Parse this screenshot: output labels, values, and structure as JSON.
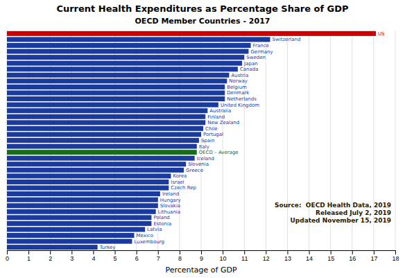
{
  "chart_data": {
    "type": "bar",
    "orientation": "horizontal",
    "title": "Current Health Expenditures as Percentage Share of GDP",
    "subtitle": "OECD Member Countries - 2017",
    "xlabel": "Percentage of GDP",
    "annotations": [
      "Source:  OECD Health Data, 2019\nReleased July 2, 2019\nUpdated November 15, 2019"
    ],
    "categories": [
      "US",
      "Switzerland",
      "France",
      "Germany",
      "Sweden",
      "Japan",
      "Canada",
      "Austria",
      "Norway",
      "Belgium",
      "Denmark",
      "Netherlands",
      "United Kingdom",
      "Australia",
      "Finland",
      "New Zealand",
      "Chile",
      "Portugal",
      "Spain",
      "Italy",
      "OECD – Average",
      "Iceland",
      "Slovenia",
      "Greece",
      "Korea",
      "Israel",
      "Czech Rep",
      "Ireland",
      "Hungary",
      "Slovakia",
      "Lithuania",
      "Poland",
      "Estonia",
      "Latvia",
      "Mexico",
      "Luxembourg",
      "Turkey"
    ],
    "values": [
      17.1,
      12.2,
      11.3,
      11.2,
      11.0,
      10.9,
      10.7,
      10.3,
      10.2,
      10.1,
      10.1,
      10.1,
      9.8,
      9.3,
      9.2,
      9.2,
      9.1,
      9.0,
      8.9,
      8.8,
      8.8,
      8.7,
      8.3,
      8.2,
      7.6,
      7.5,
      7.5,
      7.1,
      7.0,
      7.0,
      6.9,
      6.7,
      6.7,
      6.4,
      5.9,
      5.8,
      4.2
    ],
    "colors": [
      "#cc0000",
      "#1a3a9e",
      "#1a3a9e",
      "#1a3a9e",
      "#1a3a9e",
      "#1a3a9e",
      "#1a3a9e",
      "#1a3a9e",
      "#1a3a9e",
      "#1a3a9e",
      "#1a3a9e",
      "#1a3a9e",
      "#1a3a9e",
      "#1a3a9e",
      "#1a3a9e",
      "#1a3a9e",
      "#1a3a9e",
      "#1a3a9e",
      "#1a3a9e",
      "#1a3a9e",
      "#1a6b1a",
      "#1a3a9e",
      "#1a3a9e",
      "#1a3a9e",
      "#1a3a9e",
      "#1a3a9e",
      "#1a3a9e",
      "#1a3a9e",
      "#1a3a9e",
      "#1a3a9e",
      "#1a3a9e",
      "#1a3a9e",
      "#1a3a9e",
      "#1a3a9e",
      "#1a3a9e",
      "#1a3a9e",
      "#1a3a9e"
    ],
    "xlim": [
      0,
      18
    ],
    "xticks": [
      0,
      1,
      2,
      3,
      4,
      5,
      6,
      7,
      8,
      9,
      10,
      11,
      12,
      13,
      14,
      15,
      16,
      17,
      18
    ],
    "grid": true,
    "tick_labels": "x"
  }
}
